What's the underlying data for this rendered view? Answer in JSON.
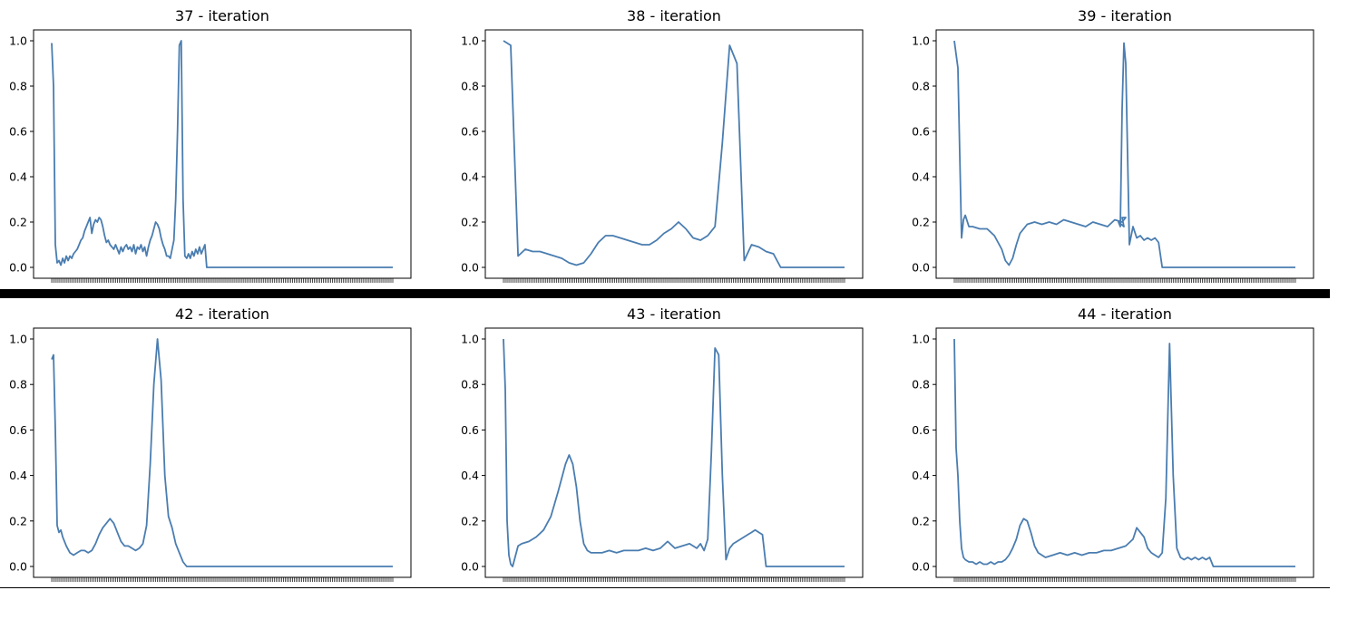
{
  "figure": {
    "line_color": "#4a7db0",
    "divider_color": "#000000"
  },
  "chart_data": [
    {
      "type": "line",
      "title": "37 - iteration",
      "ylim": [
        0,
        1.0
      ],
      "yticks": [
        "0.0",
        "0.2",
        "0.4",
        "0.6",
        "0.8",
        "1.0"
      ],
      "x": [
        0,
        1,
        2,
        3,
        4,
        5,
        6,
        7,
        8,
        9,
        10,
        11,
        12,
        13,
        14,
        15,
        16,
        17,
        18,
        19,
        20,
        21,
        22,
        23,
        24,
        25,
        26,
        27,
        28,
        29,
        30,
        31,
        32,
        33,
        34,
        35,
        36,
        37,
        38,
        39,
        40,
        41,
        42,
        43,
        44,
        45,
        46,
        47,
        48,
        49,
        50,
        51,
        52,
        53,
        54,
        55,
        56,
        57,
        58,
        59,
        60,
        61,
        62,
        63,
        64,
        65,
        66,
        67,
        68,
        69,
        70,
        71,
        72,
        73,
        74,
        75,
        76,
        77,
        78,
        79,
        80,
        81,
        82,
        83,
        84,
        85,
        86,
        87,
        88,
        89,
        90,
        91,
        92,
        93,
        94,
        95,
        96,
        97,
        98,
        99,
        100,
        101,
        102,
        103,
        104,
        105,
        106,
        107,
        108,
        109,
        110,
        111,
        112,
        113,
        114,
        115,
        116,
        117,
        118,
        119,
        120,
        121,
        122,
        123,
        124,
        125,
        126,
        127,
        128,
        129,
        130,
        131,
        132,
        133,
        134,
        135,
        136,
        137,
        138,
        139,
        140,
        141,
        142,
        143,
        144,
        145,
        146,
        147,
        148,
        149,
        150,
        151,
        152,
        153,
        154,
        155,
        156,
        157,
        158,
        159,
        160,
        161,
        162,
        163,
        164,
        165,
        166,
        167,
        168,
        169,
        170,
        171,
        172,
        173,
        174,
        175,
        176,
        177,
        178,
        179,
        180,
        181,
        182,
        183,
        184,
        185,
        186,
        187
      ],
      "y": [
        0.99,
        0.8,
        0.1,
        0.02,
        0.03,
        0.01,
        0.04,
        0.02,
        0.05,
        0.03,
        0.05,
        0.04,
        0.06,
        0.07,
        0.08,
        0.1,
        0.12,
        0.13,
        0.16,
        0.18,
        0.2,
        0.22,
        0.15,
        0.19,
        0.21,
        0.2,
        0.22,
        0.21,
        0.18,
        0.14,
        0.11,
        0.12,
        0.1,
        0.09,
        0.08,
        0.1,
        0.08,
        0.06,
        0.09,
        0.07,
        0.09,
        0.1,
        0.08,
        0.09,
        0.07,
        0.1,
        0.06,
        0.09,
        0.08,
        0.1,
        0.07,
        0.09,
        0.05,
        0.09,
        0.12,
        0.14,
        0.17,
        0.2,
        0.19,
        0.17,
        0.13,
        0.1,
        0.08,
        0.05,
        0.05,
        0.04,
        0.08,
        0.12,
        0.3,
        0.6,
        0.98,
        1.0,
        0.3,
        0.05,
        0.04,
        0.06,
        0.04,
        0.07,
        0.05,
        0.08,
        0.06,
        0.09,
        0.06,
        0.08,
        0.1,
        0.0,
        0.0,
        0.0,
        0.0,
        0.0,
        0.0,
        0.0,
        0.0,
        0.0,
        0.0,
        0.0,
        0.0,
        0.0,
        0.0,
        0.0,
        0.0,
        0.0,
        0.0,
        0.0,
        0.0,
        0.0,
        0.0,
        0.0,
        0.0,
        0.0,
        0.0,
        0.0,
        0.0,
        0.0,
        0.0,
        0.0,
        0.0,
        0.0,
        0.0,
        0.0,
        0.0,
        0.0,
        0.0,
        0.0,
        0.0,
        0.0,
        0.0,
        0.0,
        0.0,
        0.0,
        0.0,
        0.0,
        0.0,
        0.0,
        0.0,
        0.0,
        0.0,
        0.0,
        0.0,
        0.0,
        0.0,
        0.0,
        0.0,
        0.0,
        0.0,
        0.0,
        0.0,
        0.0,
        0.0,
        0.0,
        0.0,
        0.0,
        0.0,
        0.0,
        0.0,
        0.0,
        0.0,
        0.0,
        0.0,
        0.0,
        0.0,
        0.0,
        0.0,
        0.0,
        0.0,
        0.0,
        0.0,
        0.0,
        0.0,
        0.0,
        0.0,
        0.0,
        0.0,
        0.0,
        0.0,
        0.0,
        0.0,
        0.0,
        0.0,
        0.0,
        0.0,
        0.0,
        0.0,
        0.0,
        0.0,
        0.0,
        0.0,
        0.0
      ]
    },
    {
      "type": "line",
      "title": "38 - iteration",
      "ylim": [
        0,
        1.0
      ],
      "yticks": [
        "0.0",
        "0.2",
        "0.4",
        "0.6",
        "0.8",
        "1.0"
      ],
      "x": [
        0,
        4,
        8,
        12,
        16,
        20,
        24,
        28,
        32,
        36,
        40,
        44,
        48,
        52,
        56,
        60,
        64,
        68,
        72,
        76,
        80,
        84,
        88,
        92,
        96,
        100,
        104,
        108,
        112,
        116,
        120,
        124,
        128,
        132,
        136,
        140,
        144,
        148,
        152,
        156,
        160,
        164,
        168,
        172,
        176,
        180,
        184,
        187
      ],
      "y": [
        1.0,
        0.98,
        0.05,
        0.08,
        0.07,
        0.07,
        0.06,
        0.05,
        0.04,
        0.02,
        0.01,
        0.02,
        0.06,
        0.11,
        0.14,
        0.14,
        0.13,
        0.12,
        0.11,
        0.1,
        0.1,
        0.12,
        0.15,
        0.17,
        0.2,
        0.17,
        0.13,
        0.12,
        0.14,
        0.18,
        0.55,
        0.98,
        0.9,
        0.03,
        0.1,
        0.09,
        0.07,
        0.06,
        0.0,
        0.0,
        0.0,
        0.0,
        0.0,
        0.0,
        0.0,
        0.0,
        0.0,
        0.0
      ]
    },
    {
      "type": "line",
      "title": "39 - iteration",
      "ylim": [
        0,
        1.0
      ],
      "yticks": [
        "0.0",
        "0.2",
        "0.4",
        "0.6",
        "0.8",
        "1.0"
      ],
      "x": [
        0,
        2,
        3,
        4,
        5,
        6,
        8,
        10,
        14,
        18,
        22,
        26,
        28,
        30,
        32,
        34,
        36,
        40,
        44,
        48,
        52,
        56,
        60,
        64,
        68,
        72,
        76,
        80,
        84,
        88,
        92,
        94,
        92,
        93,
        90,
        91,
        92,
        93,
        94,
        95,
        96,
        98,
        100,
        102,
        104,
        106,
        108,
        110,
        112,
        114,
        116,
        187
      ],
      "y": [
        1.0,
        0.88,
        0.5,
        0.13,
        0.21,
        0.23,
        0.18,
        0.18,
        0.17,
        0.17,
        0.14,
        0.08,
        0.03,
        0.01,
        0.04,
        0.1,
        0.15,
        0.19,
        0.2,
        0.19,
        0.2,
        0.19,
        0.21,
        0.2,
        0.19,
        0.18,
        0.2,
        0.19,
        0.18,
        0.21,
        0.2,
        0.22,
        0.22,
        0.18,
        0.2,
        0.18,
        0.7,
        0.99,
        0.9,
        0.5,
        0.1,
        0.18,
        0.13,
        0.14,
        0.12,
        0.13,
        0.12,
        0.13,
        0.11,
        0.0,
        0.0,
        0.0
      ]
    },
    {
      "type": "line",
      "title": "42 - iteration",
      "ylim": [
        0,
        1.0
      ],
      "yticks": [
        "0.0",
        "0.2",
        "0.4",
        "0.6",
        "0.8",
        "1.0"
      ],
      "x": [
        0,
        1,
        2,
        3,
        4,
        5,
        6,
        7,
        8,
        10,
        12,
        14,
        16,
        18,
        20,
        22,
        24,
        26,
        28,
        30,
        32,
        34,
        36,
        38,
        40,
        42,
        44,
        46,
        48,
        50,
        52,
        54,
        56,
        58,
        60,
        62,
        64,
        66,
        68,
        70,
        72,
        74,
        76,
        78,
        80,
        82,
        84,
        86,
        88,
        90,
        92,
        94,
        96,
        98,
        100,
        102,
        110,
        120,
        130,
        140,
        150,
        160,
        170,
        180,
        187
      ],
      "y": [
        0.91,
        0.93,
        0.6,
        0.18,
        0.15,
        0.16,
        0.13,
        0.11,
        0.09,
        0.06,
        0.05,
        0.06,
        0.07,
        0.07,
        0.06,
        0.07,
        0.1,
        0.14,
        0.17,
        0.19,
        0.21,
        0.19,
        0.15,
        0.11,
        0.09,
        0.09,
        0.08,
        0.07,
        0.08,
        0.1,
        0.18,
        0.45,
        0.8,
        1.0,
        0.82,
        0.4,
        0.22,
        0.17,
        0.1,
        0.06,
        0.02,
        0.0,
        0.0,
        0.0,
        0.0,
        0.0,
        0.0,
        0.0,
        0.0,
        0.0,
        0.0,
        0.0,
        0.0,
        0.0,
        0.0,
        0.0,
        0.0,
        0.0,
        0.0,
        0.0,
        0.0,
        0.0,
        0.0,
        0.0,
        0.0
      ]
    },
    {
      "type": "line",
      "title": "43 - iteration",
      "ylim": [
        0,
        1.0
      ],
      "yticks": [
        "0.0",
        "0.2",
        "0.4",
        "0.6",
        "0.8",
        "1.0"
      ],
      "x": [
        0,
        1,
        2,
        3,
        4,
        5,
        6,
        8,
        10,
        14,
        18,
        22,
        26,
        30,
        34,
        36,
        38,
        40,
        42,
        44,
        46,
        48,
        50,
        54,
        58,
        62,
        66,
        70,
        74,
        78,
        82,
        86,
        90,
        94,
        98,
        102,
        104,
        106,
        108,
        110,
        112,
        114,
        116,
        118,
        120,
        122,
        124,
        126,
        128,
        130,
        132,
        134,
        136,
        138,
        140,
        142,
        144,
        146,
        187
      ],
      "y": [
        1.0,
        0.78,
        0.2,
        0.05,
        0.01,
        0.0,
        0.03,
        0.09,
        0.1,
        0.11,
        0.13,
        0.16,
        0.22,
        0.33,
        0.45,
        0.49,
        0.45,
        0.35,
        0.2,
        0.1,
        0.07,
        0.06,
        0.06,
        0.06,
        0.07,
        0.06,
        0.07,
        0.07,
        0.07,
        0.08,
        0.07,
        0.08,
        0.11,
        0.08,
        0.09,
        0.1,
        0.09,
        0.08,
        0.1,
        0.07,
        0.12,
        0.5,
        0.96,
        0.93,
        0.4,
        0.03,
        0.08,
        0.1,
        0.11,
        0.12,
        0.13,
        0.14,
        0.15,
        0.16,
        0.15,
        0.14,
        0.0,
        0.0,
        0.0
      ]
    },
    {
      "type": "line",
      "title": "44 - iteration",
      "ylim": [
        0,
        1.0
      ],
      "yticks": [
        "0.0",
        "0.2",
        "0.4",
        "0.6",
        "0.8",
        "1.0"
      ],
      "x": [
        0,
        1,
        2,
        3,
        4,
        5,
        6,
        8,
        10,
        12,
        14,
        16,
        18,
        20,
        22,
        24,
        26,
        28,
        30,
        32,
        34,
        36,
        38,
        40,
        42,
        44,
        46,
        48,
        50,
        54,
        58,
        62,
        66,
        70,
        74,
        78,
        82,
        86,
        90,
        94,
        98,
        100,
        102,
        104,
        106,
        108,
        110,
        112,
        114,
        116,
        118,
        120,
        122,
        124,
        126,
        128,
        130,
        132,
        134,
        136,
        138,
        140,
        142,
        144,
        146,
        187
      ],
      "y": [
        1.0,
        0.52,
        0.4,
        0.2,
        0.08,
        0.04,
        0.03,
        0.02,
        0.02,
        0.01,
        0.02,
        0.01,
        0.01,
        0.02,
        0.01,
        0.02,
        0.02,
        0.03,
        0.05,
        0.08,
        0.12,
        0.18,
        0.21,
        0.2,
        0.15,
        0.09,
        0.06,
        0.05,
        0.04,
        0.05,
        0.06,
        0.05,
        0.06,
        0.05,
        0.06,
        0.06,
        0.07,
        0.07,
        0.08,
        0.09,
        0.12,
        0.17,
        0.15,
        0.13,
        0.08,
        0.06,
        0.05,
        0.04,
        0.06,
        0.3,
        0.98,
        0.4,
        0.08,
        0.04,
        0.03,
        0.04,
        0.03,
        0.04,
        0.03,
        0.04,
        0.03,
        0.04,
        0.0,
        0.0,
        0.0,
        0.0
      ]
    }
  ]
}
